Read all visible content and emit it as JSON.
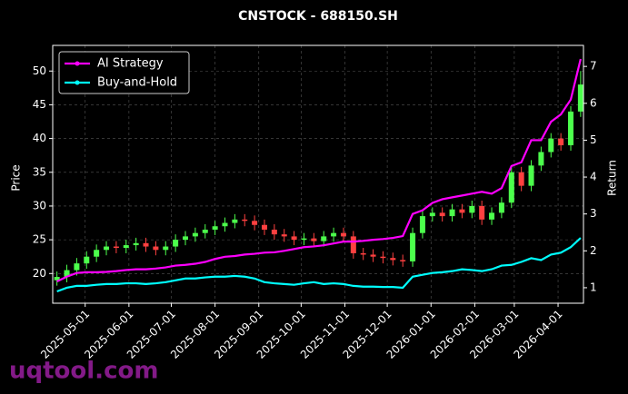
{
  "chart_data": {
    "type": "candlestick",
    "title": "CNSTOCK - 688150.SH",
    "ylabel": "Price",
    "y2label": "Return",
    "x": [
      "2025-04-11",
      "2025-04-18",
      "2025-04-25",
      "2025-05-02",
      "2025-05-09",
      "2025-05-16",
      "2025-05-23",
      "2025-05-30",
      "2025-06-06",
      "2025-06-13",
      "2025-06-20",
      "2025-06-27",
      "2025-07-04",
      "2025-07-11",
      "2025-07-18",
      "2025-07-25",
      "2025-08-01",
      "2025-08-08",
      "2025-08-15",
      "2025-08-22",
      "2025-08-29",
      "2025-09-05",
      "2025-09-12",
      "2025-09-19",
      "2025-09-26",
      "2025-10-03",
      "2025-10-10",
      "2025-10-17",
      "2025-10-24",
      "2025-10-31",
      "2025-11-07",
      "2025-11-14",
      "2025-11-21",
      "2025-11-28",
      "2025-12-05",
      "2025-12-12",
      "2025-12-19",
      "2025-12-26",
      "2026-01-02",
      "2026-01-09",
      "2026-01-16",
      "2026-01-23",
      "2026-01-30",
      "2026-02-06",
      "2026-02-13",
      "2026-02-20",
      "2026-02-27",
      "2026-03-06",
      "2026-03-13",
      "2026-03-20",
      "2026-03-27",
      "2026-04-03",
      "2026-04-10",
      "2026-04-17"
    ],
    "open": [
      19,
      19.5,
      20.5,
      21.5,
      22.5,
      23.5,
      24,
      23.8,
      24.2,
      24.5,
      24,
      23.5,
      24,
      25,
      25.5,
      26,
      26.5,
      27,
      27.5,
      28,
      27.8,
      27.2,
      26.5,
      25.8,
      25.5,
      25,
      25.2,
      24.8,
      25.5,
      26,
      25.5,
      23,
      22.8,
      22.5,
      22.3,
      22,
      21.8,
      26,
      28.5,
      29,
      28.5,
      29.5,
      29,
      30,
      28,
      29,
      30.5,
      35,
      33,
      36,
      38,
      40,
      39,
      44
    ],
    "high": [
      20.3,
      21.3,
      22.3,
      23.3,
      24.3,
      24.8,
      24.8,
      25,
      25.3,
      25.3,
      24.8,
      24.8,
      25.8,
      26.3,
      26.8,
      27.3,
      27.8,
      28.3,
      28.8,
      28.8,
      28.6,
      28,
      27.3,
      26.6,
      26.3,
      26,
      26,
      26.3,
      26.8,
      26.8,
      26.3,
      23.8,
      23.6,
      23.3,
      23.1,
      22.8,
      26.8,
      29.3,
      29.8,
      29.8,
      30.3,
      30.3,
      30.8,
      30.8,
      29.8,
      31.3,
      35.8,
      35.8,
      36.8,
      38.8,
      40.8,
      40.8,
      44.8,
      50
    ],
    "low": [
      18.2,
      18.7,
      19.7,
      20.7,
      21.7,
      22.7,
      23,
      23,
      23.4,
      23.2,
      22.7,
      22.7,
      23.2,
      24.2,
      24.7,
      25.2,
      25.7,
      26.2,
      26.7,
      27,
      26.4,
      25.7,
      25,
      24.7,
      24.2,
      24.2,
      24,
      24,
      24.7,
      24.7,
      22.2,
      22,
      21.7,
      21.5,
      21.2,
      21,
      21,
      25.2,
      27.7,
      27.7,
      27.7,
      28.2,
      28.2,
      27.2,
      27.2,
      28.2,
      29.7,
      32.2,
      32.2,
      35.2,
      37.2,
      38.2,
      38.2,
      43.2
    ],
    "close": [
      19.5,
      20.5,
      21.5,
      22.5,
      23.5,
      24,
      23.8,
      24.2,
      24.5,
      24,
      23.5,
      24,
      25,
      25.5,
      26,
      26.5,
      27,
      27.5,
      28,
      27.8,
      27.2,
      26.5,
      25.8,
      25.5,
      25,
      25.2,
      24.8,
      25.5,
      26,
      25.5,
      23,
      22.8,
      22.5,
      22.3,
      22,
      21.8,
      26,
      28.5,
      29,
      28.5,
      29.5,
      29,
      30,
      28,
      29,
      30.5,
      35,
      33,
      36,
      38,
      40,
      39,
      44,
      48
    ],
    "up_color": "#4cff4c",
    "down_color": "#ff4040",
    "series": [
      {
        "name": "AI Strategy",
        "color": "#ff00ff",
        "axis": "y2",
        "values": [
          1.17,
          1.3,
          1.4,
          1.42,
          1.42,
          1.43,
          1.45,
          1.48,
          1.5,
          1.5,
          1.52,
          1.55,
          1.6,
          1.62,
          1.65,
          1.7,
          1.78,
          1.84,
          1.86,
          1.9,
          1.92,
          1.95,
          1.96,
          2.0,
          2.05,
          2.1,
          2.12,
          2.15,
          2.2,
          2.25,
          2.25,
          2.27,
          2.3,
          2.32,
          2.35,
          2.4,
          3.0,
          3.1,
          3.3,
          3.4,
          3.45,
          3.5,
          3.55,
          3.6,
          3.55,
          3.7,
          4.3,
          4.4,
          5.0,
          5.0,
          5.5,
          5.7,
          6.1,
          7.2
        ]
      },
      {
        "name": "Buy-and-Hold",
        "color": "#00ffff",
        "axis": "y2",
        "values": [
          0.9,
          1.0,
          1.05,
          1.05,
          1.08,
          1.1,
          1.1,
          1.12,
          1.12,
          1.1,
          1.12,
          1.15,
          1.2,
          1.25,
          1.25,
          1.28,
          1.3,
          1.3,
          1.32,
          1.3,
          1.25,
          1.15,
          1.12,
          1.1,
          1.08,
          1.12,
          1.15,
          1.1,
          1.12,
          1.1,
          1.05,
          1.03,
          1.03,
          1.02,
          1.02,
          1.0,
          1.3,
          1.35,
          1.4,
          1.42,
          1.45,
          1.5,
          1.48,
          1.45,
          1.5,
          1.6,
          1.62,
          1.7,
          1.8,
          1.75,
          1.9,
          1.95,
          2.1,
          2.35
        ]
      }
    ],
    "xlim": [
      "2025-04-08",
      "2026-04-19"
    ],
    "xticks": [
      "2025-05-01",
      "2025-06-01",
      "2025-07-01",
      "2025-08-01",
      "2025-09-01",
      "2025-10-01",
      "2025-11-01",
      "2025-12-01",
      "2026-01-01",
      "2026-02-01",
      "2026-03-01",
      "2026-04-01"
    ],
    "ylim": [
      15.6,
      53.8
    ],
    "yticks": [
      20,
      25,
      30,
      35,
      40,
      45,
      50
    ],
    "y2lim": [
      0.58,
      7.57
    ],
    "y2ticks": [
      1,
      2,
      3,
      4,
      5,
      6,
      7
    ],
    "grid": true,
    "legend": "upper left",
    "watermark": "uqtool.com"
  }
}
